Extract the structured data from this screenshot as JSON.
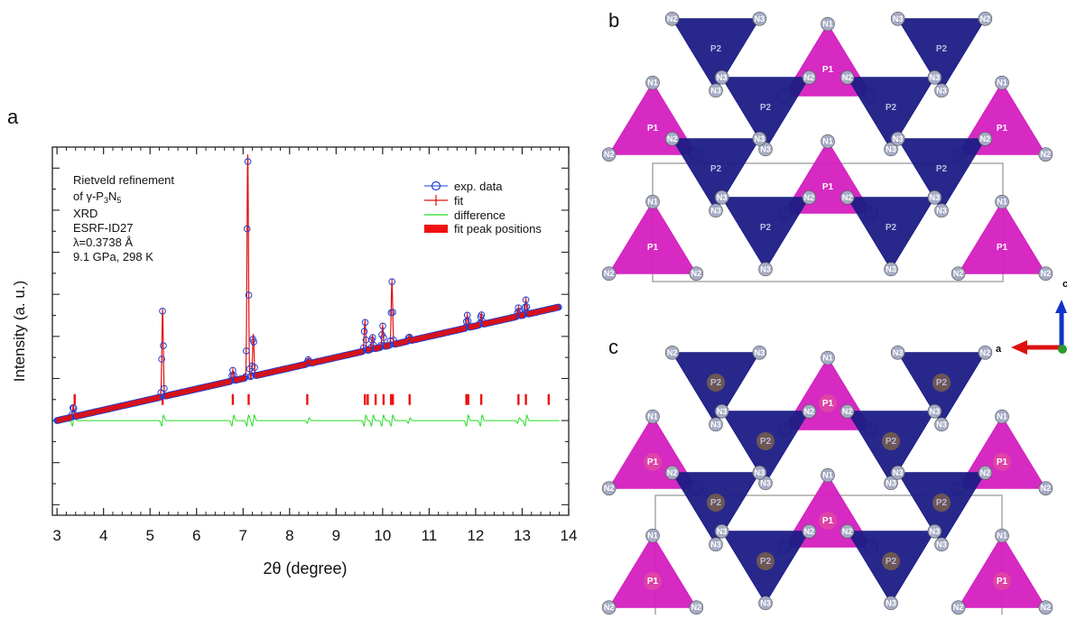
{
  "panel_labels": {
    "a": "a",
    "b": "b",
    "c": "c"
  },
  "axis_labels": {
    "a": "a",
    "c": "c"
  },
  "atom_labels": {
    "n1": "N1",
    "n2": "N2",
    "n3": "N3",
    "p1": "P1",
    "p2": "P2"
  },
  "colors": {
    "exp": "#1f3fd6",
    "fit": "#e01010",
    "diff": "#22dd22",
    "peaks": "#ee1111",
    "p1_tetra": "#d41fbf",
    "p2_tetra": "#1c1c86",
    "n_atom": "#a5abc4",
    "cell_line": "#9a9a9a"
  },
  "chart_data": {
    "type": "line",
    "title": "",
    "xlabel": "2θ (degree)",
    "ylabel": "Intensity (a. u.)",
    "xlim": [
      2.9,
      14.0
    ],
    "ylim": [
      -0.45,
      1.3
    ],
    "x_ticks": [
      3,
      4,
      5,
      6,
      7,
      8,
      9,
      10,
      11,
      12,
      13,
      14
    ],
    "annotation": {
      "line1": "Rietveld refinement",
      "line2_pre": "of γ-P",
      "line2_sub1": "3",
      "line2_mid": "N",
      "line2_sub2": "5",
      "line3": "XRD",
      "line4": "ESRF-ID27",
      "line5": "λ=0.3738 Å",
      "line6": "9.1 GPa, 298 K"
    },
    "legend": {
      "position": "top-right",
      "entries": [
        {
          "name": "exp. data",
          "style": "circle",
          "color": "#1f3fd6"
        },
        {
          "name": "fit",
          "style": "cross",
          "color": "#e01010"
        },
        {
          "name": "difference",
          "style": "line",
          "color": "#22dd22"
        },
        {
          "name": "fit peak positions",
          "style": "bar",
          "color": "#ee1111"
        }
      ]
    },
    "background": {
      "x": [
        3.0,
        14.0
      ],
      "y": [
        0.0,
        0.55
      ]
    },
    "peaks": [
      {
        "x": 3.35,
        "height": 0.05
      },
      {
        "x": 5.27,
        "height": 0.41
      },
      {
        "x": 6.78,
        "height": 0.05
      },
      {
        "x": 7.1,
        "height": 1.06
      },
      {
        "x": 7.22,
        "height": 0.2
      },
      {
        "x": 8.4,
        "height": 0.02
      },
      {
        "x": 9.62,
        "height": 0.14
      },
      {
        "x": 9.78,
        "height": 0.06
      },
      {
        "x": 10.0,
        "height": 0.1
      },
      {
        "x": 10.2,
        "height": 0.3
      },
      {
        "x": 10.57,
        "height": 0.02
      },
      {
        "x": 11.82,
        "height": 0.06
      },
      {
        "x": 12.12,
        "height": 0.05
      },
      {
        "x": 12.92,
        "height": 0.04
      },
      {
        "x": 13.08,
        "height": 0.07
      }
    ],
    "peak_positions": [
      3.38,
      5.27,
      6.78,
      7.12,
      8.38,
      9.62,
      9.68,
      9.85,
      10.02,
      10.18,
      10.22,
      10.58,
      11.8,
      11.84,
      12.12,
      12.92,
      13.08,
      13.57
    ],
    "peak_marker_y": 0.1,
    "difference_baseline": 0.0
  }
}
